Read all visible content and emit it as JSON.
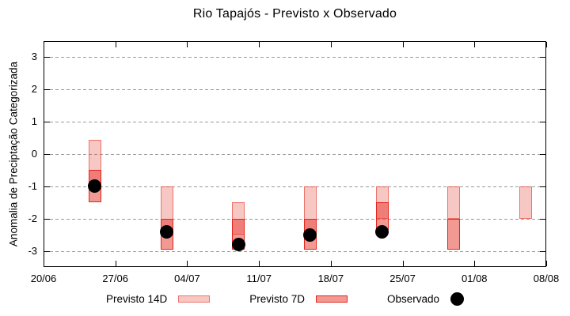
{
  "title": "Rio Tapajós - Previsto x Observado",
  "y_axis_label": "Anomalia de Preciptação Categorizada",
  "legend": {
    "items": [
      {
        "label": "Previsto 14D",
        "swatch": "light-pink-box"
      },
      {
        "label": "Previsto 7D",
        "swatch": "red-box"
      },
      {
        "label": "Observado",
        "swatch": "black-dot"
      }
    ]
  },
  "colors": {
    "p14_fill": "rgba(230,70,58,0.30)",
    "p14_border": "rgba(230,70,58,0.65)",
    "p7_fill": "rgba(230,60,48,0.52)",
    "p7_border": "#e3251b",
    "observed": "#000000",
    "grid": "#9a9a9a",
    "axis": "#000000"
  },
  "chart_data": {
    "type": "bar",
    "subtype": "floating-range-bars-with-scatter",
    "title": "Rio Tapajós - Previsto x Observado",
    "xlabel": "",
    "ylabel": "Anomalia de Preciptação Categorizada",
    "ylim": [
      -3.5,
      3.5
    ],
    "yticks": [
      3,
      2,
      1,
      0,
      -1,
      -2,
      -3
    ],
    "x_days_range": [
      0,
      49
    ],
    "xticks": [
      {
        "day": 0,
        "label": "20/06"
      },
      {
        "day": 7,
        "label": "27/06"
      },
      {
        "day": 14,
        "label": "04/07"
      },
      {
        "day": 21,
        "label": "11/07"
      },
      {
        "day": 28,
        "label": "18/07"
      },
      {
        "day": 35,
        "label": "25/07"
      },
      {
        "day": 42,
        "label": "01/08"
      },
      {
        "day": 49,
        "label": "08/08"
      }
    ],
    "grid": "horizontal-dashed",
    "legend_position": "bottom-outside",
    "series": [
      {
        "name": "Previsto 14D",
        "type": "range-bar",
        "points": [
          {
            "date": "25/06",
            "day": 5,
            "low": -1.0,
            "high": 0.45
          },
          {
            "date": "02/07",
            "day": 12,
            "low": -2.5,
            "high": -1.0
          },
          {
            "date": "09/07",
            "day": 19,
            "low": -2.5,
            "high": -1.5
          },
          {
            "date": "16/07",
            "day": 26,
            "low": -2.5,
            "high": -1.0
          },
          {
            "date": "23/07",
            "day": 33,
            "low": -2.0,
            "high": -1.0
          },
          {
            "date": "30/07",
            "day": 40,
            "low": -2.0,
            "high": -1.0
          },
          {
            "date": "06/08",
            "day": 47,
            "low": -2.0,
            "high": -1.0
          }
        ]
      },
      {
        "name": "Previsto 7D",
        "type": "range-bar",
        "points": [
          {
            "date": "25/06",
            "day": 5,
            "low": -1.5,
            "high": -0.5
          },
          {
            "date": "02/07",
            "day": 12,
            "low": -2.95,
            "high": -2.0
          },
          {
            "date": "09/07",
            "day": 19,
            "low": -2.95,
            "high": -2.0
          },
          {
            "date": "16/07",
            "day": 26,
            "low": -2.95,
            "high": -2.0
          },
          {
            "date": "23/07",
            "day": 33,
            "low": -2.35,
            "high": -1.5
          },
          {
            "date": "30/07",
            "day": 40,
            "low": -2.95,
            "high": -2.0
          }
        ]
      },
      {
        "name": "Observado",
        "type": "scatter",
        "points": [
          {
            "date": "25/06",
            "day": 5,
            "value": -1.0
          },
          {
            "date": "02/07",
            "day": 12,
            "value": -2.4
          },
          {
            "date": "09/07",
            "day": 19,
            "value": -2.8
          },
          {
            "date": "16/07",
            "day": 26,
            "value": -2.5
          },
          {
            "date": "23/07",
            "day": 33,
            "value": -2.4
          }
        ]
      }
    ]
  }
}
